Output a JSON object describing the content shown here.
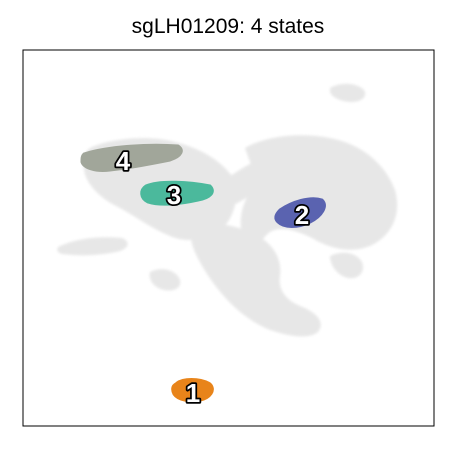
{
  "chart_data": {
    "type": "scatter",
    "title": "sgLH01209: 4 states",
    "xlabel": "",
    "ylabel": "",
    "grid": false,
    "legend": "none",
    "background_color": "#e0e0e0",
    "states": [
      {
        "label": "1",
        "color": "#e8841a"
      },
      {
        "label": "2",
        "color": "#5a63b0"
      },
      {
        "label": "3",
        "color": "#4bb99c"
      },
      {
        "label": "4",
        "color": "#a1a69a"
      }
    ]
  }
}
